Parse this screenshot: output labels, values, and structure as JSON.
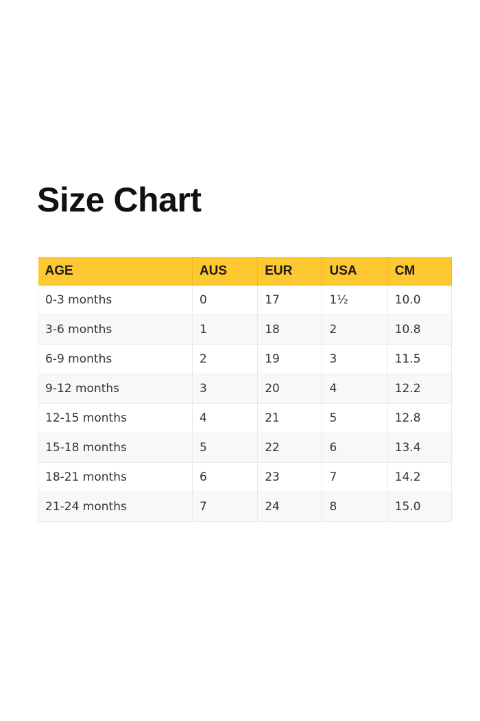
{
  "title": "Size Chart",
  "accent_color": "#fdc830",
  "table": {
    "headers": [
      "AGE",
      "AUS",
      "EUR",
      "USA",
      "CM"
    ],
    "rows": [
      [
        "0-3 months",
        "0",
        "17",
        "1½",
        "10.0"
      ],
      [
        "3-6 months",
        "1",
        "18",
        "2",
        "10.8"
      ],
      [
        "6-9 months",
        "2",
        "19",
        "3",
        "11.5"
      ],
      [
        "9-12 months",
        "3",
        "20",
        "4",
        "12.2"
      ],
      [
        "12-15 months",
        "4",
        "21",
        "5",
        "12.8"
      ],
      [
        "15-18 months",
        "5",
        "22",
        "6",
        "13.4"
      ],
      [
        "18-21 months",
        "6",
        "23",
        "7",
        "14.2"
      ],
      [
        "21-24 months",
        "7",
        "24",
        "8",
        "15.0"
      ]
    ]
  }
}
